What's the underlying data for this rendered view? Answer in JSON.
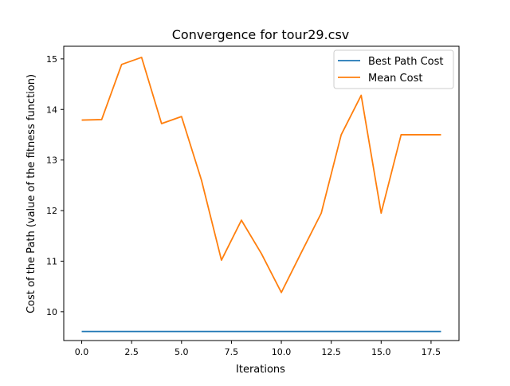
{
  "chart_data": {
    "type": "line",
    "title": "Convergence for tour29.csv",
    "xlabel": "Iterations",
    "ylabel": "Cost of the Path (value of the fitness function)",
    "xlim": [
      -0.9,
      18.9
    ],
    "ylim": [
      9.43,
      15.25
    ],
    "xticks": [
      0.0,
      2.5,
      5.0,
      7.5,
      10.0,
      12.5,
      15.0,
      17.5
    ],
    "xtick_labels": [
      "0.0",
      "2.5",
      "5.0",
      "7.5",
      "10.0",
      "12.5",
      "15.0",
      "17.5"
    ],
    "yticks": [
      10,
      11,
      12,
      13,
      14,
      15
    ],
    "ytick_labels": [
      "10",
      "11",
      "12",
      "13",
      "14",
      "15"
    ],
    "grid": false,
    "legend_position": "top-right",
    "x": [
      0,
      1,
      2,
      3,
      4,
      5,
      6,
      7,
      8,
      9,
      10,
      11,
      12,
      13,
      14,
      15,
      16,
      17,
      18
    ],
    "series": [
      {
        "name": "Best Path Cost",
        "color": "#1f77b4",
        "values": [
          9.61,
          9.61,
          9.61,
          9.61,
          9.61,
          9.61,
          9.61,
          9.61,
          9.61,
          9.61,
          9.61,
          9.61,
          9.61,
          9.61,
          9.61,
          9.61,
          9.61,
          9.61,
          9.61
        ]
      },
      {
        "name": "Mean Cost",
        "color": "#ff7f0e",
        "values": [
          13.79,
          13.8,
          14.89,
          15.03,
          13.72,
          13.86,
          12.6,
          11.02,
          11.81,
          11.15,
          10.38,
          11.17,
          11.95,
          13.5,
          14.28,
          11.95,
          13.5,
          13.5,
          13.5
        ]
      }
    ]
  }
}
